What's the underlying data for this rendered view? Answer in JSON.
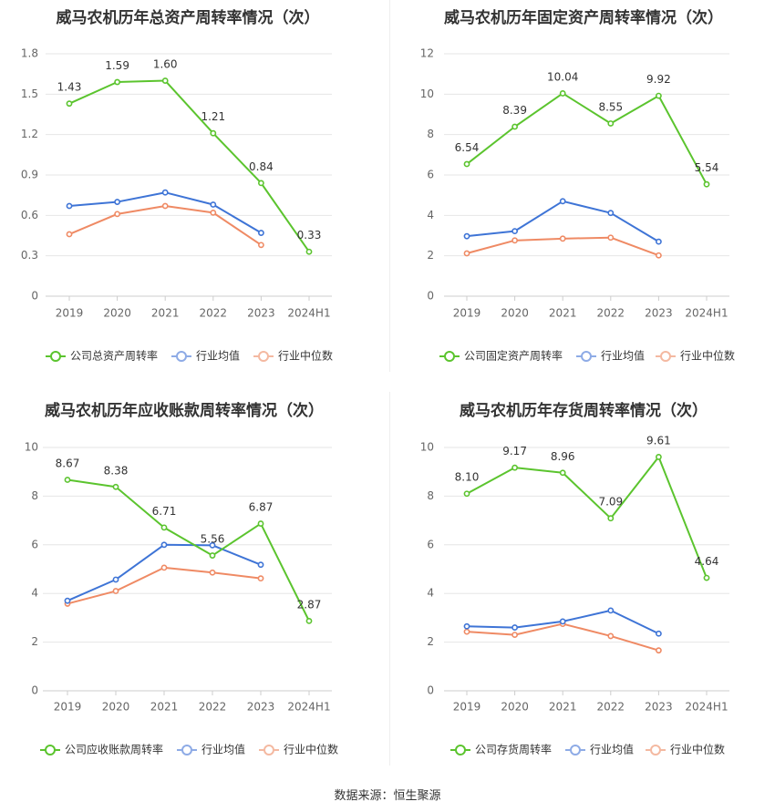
{
  "source_label": "数据来源：恒生聚源",
  "colors": {
    "company": "#5bc42e",
    "avg": "#3e74d6",
    "median": "#ef8a64",
    "legend_avg": "#8eabe6",
    "legend_median": "#f4b9a1"
  },
  "chart_data": [
    {
      "type": "line",
      "title": "威马农机历年总资产周转率情况（次）",
      "categories": [
        "2019",
        "2020",
        "2021",
        "2022",
        "2023",
        "2024H1"
      ],
      "ylim": [
        0,
        1.8
      ],
      "yticks": [
        "0",
        "0.3",
        "0.6",
        "0.9",
        "1.2",
        "1.5",
        "1.8"
      ],
      "grid": true,
      "legend_position": "bottom",
      "series": [
        {
          "name": "公司总资产周转率",
          "role": "company",
          "values": [
            1.43,
            1.59,
            1.6,
            1.21,
            0.84,
            0.33
          ],
          "labels": [
            "1.43",
            "1.59",
            "1.60",
            "1.21",
            "0.84",
            "0.33"
          ]
        },
        {
          "name": "行业均值",
          "role": "avg",
          "values": [
            0.67,
            0.7,
            0.77,
            0.68,
            0.47,
            null
          ]
        },
        {
          "name": "行业中位数",
          "role": "median",
          "values": [
            0.46,
            0.61,
            0.67,
            0.62,
            0.38,
            null
          ]
        }
      ]
    },
    {
      "type": "line",
      "title": "威马农机历年固定资产周转率情况（次）",
      "categories": [
        "2019",
        "2020",
        "2021",
        "2022",
        "2023",
        "2024H1"
      ],
      "ylim": [
        0,
        12
      ],
      "yticks": [
        "0",
        "2",
        "4",
        "6",
        "8",
        "10",
        "12"
      ],
      "grid": true,
      "legend_position": "bottom",
      "series": [
        {
          "name": "公司固定资产周转率",
          "role": "company",
          "values": [
            6.54,
            8.39,
            10.04,
            8.55,
            9.92,
            5.54
          ],
          "labels": [
            "6.54",
            "8.39",
            "10.04",
            "8.55",
            "9.92",
            "5.54"
          ]
        },
        {
          "name": "行业均值",
          "role": "avg",
          "values": [
            2.97,
            3.22,
            4.7,
            4.12,
            2.7,
            null
          ]
        },
        {
          "name": "行业中位数",
          "role": "median",
          "values": [
            2.12,
            2.76,
            2.85,
            2.9,
            2.02,
            null
          ]
        }
      ]
    },
    {
      "type": "line",
      "title": "威马农机历年应收账款周转率情况（次）",
      "categories": [
        "2019",
        "2020",
        "2021",
        "2022",
        "2023",
        "2024H1"
      ],
      "ylim": [
        0,
        10
      ],
      "yticks": [
        "0",
        "2",
        "4",
        "6",
        "8",
        "10"
      ],
      "grid": true,
      "legend_position": "bottom",
      "series": [
        {
          "name": "公司应收账款周转率",
          "role": "company",
          "values": [
            8.67,
            8.38,
            6.71,
            5.56,
            6.87,
            2.87
          ],
          "labels": [
            "8.67",
            "8.38",
            "6.71",
            "5.56",
            "6.87",
            "2.87"
          ]
        },
        {
          "name": "行业均值",
          "role": "avg",
          "values": [
            3.7,
            4.57,
            6.0,
            5.98,
            5.18,
            null
          ]
        },
        {
          "name": "行业中位数",
          "role": "median",
          "values": [
            3.58,
            4.1,
            5.06,
            4.86,
            4.62,
            null
          ]
        }
      ]
    },
    {
      "type": "line",
      "title": "威马农机历年存货周转率情况（次）",
      "categories": [
        "2019",
        "2020",
        "2021",
        "2022",
        "2023",
        "2024H1"
      ],
      "ylim": [
        0,
        10
      ],
      "yticks": [
        "0",
        "2",
        "4",
        "6",
        "8",
        "10"
      ],
      "grid": true,
      "legend_position": "bottom",
      "series": [
        {
          "name": "公司存货周转率",
          "role": "company",
          "values": [
            8.1,
            9.17,
            8.96,
            7.09,
            9.61,
            4.64
          ],
          "labels": [
            "8.10",
            "9.17",
            "8.96",
            "7.09",
            "9.61",
            "4.64"
          ]
        },
        {
          "name": "行业均值",
          "role": "avg",
          "values": [
            2.65,
            2.6,
            2.85,
            3.3,
            2.35,
            null
          ]
        },
        {
          "name": "行业中位数",
          "role": "median",
          "values": [
            2.43,
            2.3,
            2.75,
            2.25,
            1.66,
            null
          ]
        }
      ]
    }
  ]
}
